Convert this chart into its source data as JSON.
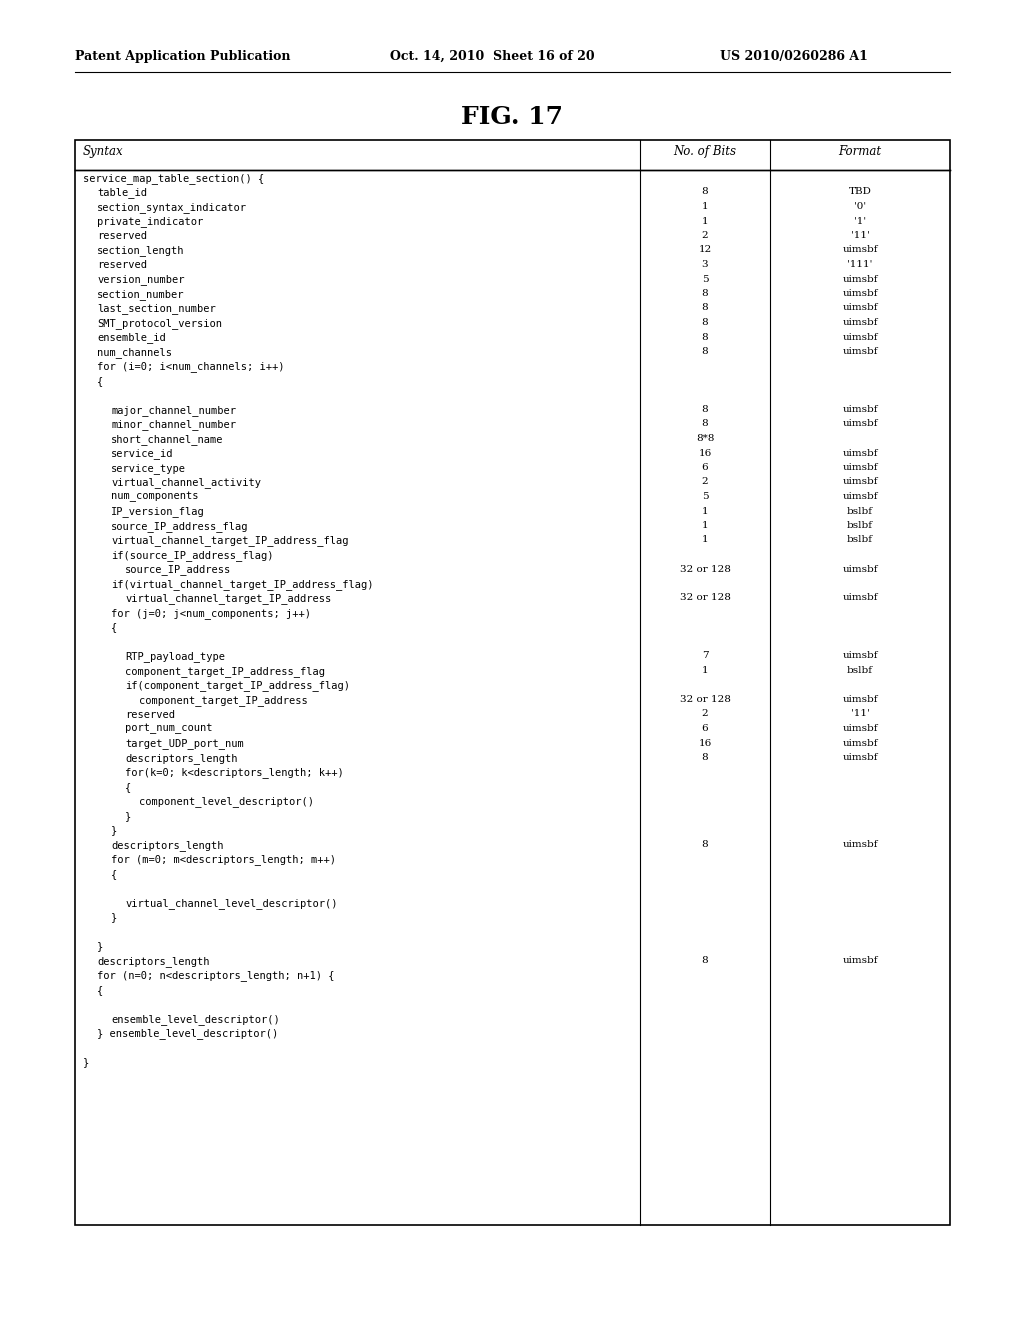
{
  "title": "FIG. 17",
  "header_line1": "Patent Application Publication",
  "header_line2": "Oct. 14, 2010  Sheet 16 of 20",
  "header_line3": "US 2010/0260286 A1",
  "col_headers": [
    "Syntax",
    "No. of Bits",
    "Format"
  ],
  "rows": [
    {
      "indent": 0,
      "syntax": "service_map_table_section() {",
      "bits": "",
      "fmt": ""
    },
    {
      "indent": 1,
      "syntax": "table_id",
      "bits": "8",
      "fmt": "TBD"
    },
    {
      "indent": 1,
      "syntax": "section_syntax_indicator",
      "bits": "1",
      "fmt": "'0'"
    },
    {
      "indent": 1,
      "syntax": "private_indicator",
      "bits": "1",
      "fmt": "'1'"
    },
    {
      "indent": 1,
      "syntax": "reserved",
      "bits": "2",
      "fmt": "'11'"
    },
    {
      "indent": 1,
      "syntax": "section_length",
      "bits": "12",
      "fmt": "uimsbf"
    },
    {
      "indent": 1,
      "syntax": "reserved",
      "bits": "3",
      "fmt": "'111'"
    },
    {
      "indent": 1,
      "syntax": "version_number",
      "bits": "5",
      "fmt": "uimsbf"
    },
    {
      "indent": 1,
      "syntax": "section_number",
      "bits": "8",
      "fmt": "uimsbf"
    },
    {
      "indent": 1,
      "syntax": "last_section_number",
      "bits": "8",
      "fmt": "uimsbf"
    },
    {
      "indent": 1,
      "syntax": "SMT_protocol_version",
      "bits": "8",
      "fmt": "uimsbf"
    },
    {
      "indent": 1,
      "syntax": "ensemble_id",
      "bits": "8",
      "fmt": "uimsbf"
    },
    {
      "indent": 1,
      "syntax": "num_channels",
      "bits": "8",
      "fmt": "uimsbf"
    },
    {
      "indent": 1,
      "syntax": "for (i=0; i<num_channels; i++)",
      "bits": "",
      "fmt": ""
    },
    {
      "indent": 1,
      "syntax": "{",
      "bits": "",
      "fmt": ""
    },
    {
      "indent": 0,
      "syntax": "",
      "bits": "",
      "fmt": ""
    },
    {
      "indent": 2,
      "syntax": "major_channel_number",
      "bits": "8",
      "fmt": "uimsbf"
    },
    {
      "indent": 2,
      "syntax": "minor_channel_number",
      "bits": "8",
      "fmt": "uimsbf"
    },
    {
      "indent": 2,
      "syntax": "short_channel_name",
      "bits": "8*8",
      "fmt": ""
    },
    {
      "indent": 2,
      "syntax": "service_id",
      "bits": "16",
      "fmt": "uimsbf"
    },
    {
      "indent": 2,
      "syntax": "service_type",
      "bits": "6",
      "fmt": "uimsbf"
    },
    {
      "indent": 2,
      "syntax": "virtual_channel_activity",
      "bits": "2",
      "fmt": "uimsbf"
    },
    {
      "indent": 2,
      "syntax": "num_components",
      "bits": "5",
      "fmt": "uimsbf"
    },
    {
      "indent": 2,
      "syntax": "IP_version_flag",
      "bits": "1",
      "fmt": "bslbf"
    },
    {
      "indent": 2,
      "syntax": "source_IP_address_flag",
      "bits": "1",
      "fmt": "bslbf"
    },
    {
      "indent": 2,
      "syntax": "virtual_channel_target_IP_address_flag",
      "bits": "1",
      "fmt": "bslbf"
    },
    {
      "indent": 2,
      "syntax": "if(source_IP_address_flag)",
      "bits": "",
      "fmt": ""
    },
    {
      "indent": 3,
      "syntax": "source_IP_address",
      "bits": "32 or 128",
      "fmt": "uimsbf"
    },
    {
      "indent": 2,
      "syntax": "if(virtual_channel_target_IP_address_flag)",
      "bits": "",
      "fmt": ""
    },
    {
      "indent": 3,
      "syntax": "virtual_channel_target_IP_address",
      "bits": "32 or 128",
      "fmt": "uimsbf"
    },
    {
      "indent": 2,
      "syntax": "for (j=0; j<num_components; j++)",
      "bits": "",
      "fmt": ""
    },
    {
      "indent": 2,
      "syntax": "{",
      "bits": "",
      "fmt": ""
    },
    {
      "indent": 0,
      "syntax": "",
      "bits": "",
      "fmt": ""
    },
    {
      "indent": 3,
      "syntax": "RTP_payload_type",
      "bits": "7",
      "fmt": "uimsbf"
    },
    {
      "indent": 3,
      "syntax": "component_target_IP_address_flag",
      "bits": "1",
      "fmt": "bslbf"
    },
    {
      "indent": 3,
      "syntax": "if(component_target_IP_address_flag)",
      "bits": "",
      "fmt": ""
    },
    {
      "indent": 4,
      "syntax": "component_target_IP_address",
      "bits": "32 or 128",
      "fmt": "uimsbf"
    },
    {
      "indent": 3,
      "syntax": "reserved",
      "bits": "2",
      "fmt": "'11'"
    },
    {
      "indent": 3,
      "syntax": "port_num_count",
      "bits": "6",
      "fmt": "uimsbf"
    },
    {
      "indent": 3,
      "syntax": "target_UDP_port_num",
      "bits": "16",
      "fmt": "uimsbf"
    },
    {
      "indent": 3,
      "syntax": "descriptors_length",
      "bits": "8",
      "fmt": "uimsbf"
    },
    {
      "indent": 3,
      "syntax": "for(k=0; k<descriptors_length; k++)",
      "bits": "",
      "fmt": ""
    },
    {
      "indent": 3,
      "syntax": "{",
      "bits": "",
      "fmt": ""
    },
    {
      "indent": 4,
      "syntax": "component_level_descriptor()",
      "bits": "",
      "fmt": ""
    },
    {
      "indent": 3,
      "syntax": "}",
      "bits": "",
      "fmt": ""
    },
    {
      "indent": 2,
      "syntax": "}",
      "bits": "",
      "fmt": ""
    },
    {
      "indent": 2,
      "syntax": "descriptors_length",
      "bits": "8",
      "fmt": "uimsbf"
    },
    {
      "indent": 2,
      "syntax": "for (m=0; m<descriptors_length; m++)",
      "bits": "",
      "fmt": ""
    },
    {
      "indent": 2,
      "syntax": "{",
      "bits": "",
      "fmt": ""
    },
    {
      "indent": 0,
      "syntax": "",
      "bits": "",
      "fmt": ""
    },
    {
      "indent": 3,
      "syntax": "virtual_channel_level_descriptor()",
      "bits": "",
      "fmt": ""
    },
    {
      "indent": 2,
      "syntax": "}",
      "bits": "",
      "fmt": ""
    },
    {
      "indent": 0,
      "syntax": "",
      "bits": "",
      "fmt": ""
    },
    {
      "indent": 1,
      "syntax": "}",
      "bits": "",
      "fmt": ""
    },
    {
      "indent": 1,
      "syntax": "descriptors_length",
      "bits": "8",
      "fmt": "uimsbf"
    },
    {
      "indent": 1,
      "syntax": "for (n=0; n<descriptors_length; n+1) {",
      "bits": "",
      "fmt": ""
    },
    {
      "indent": 1,
      "syntax": "{",
      "bits": "",
      "fmt": ""
    },
    {
      "indent": 0,
      "syntax": "",
      "bits": "",
      "fmt": ""
    },
    {
      "indent": 2,
      "syntax": "ensemble_level_descriptor()",
      "bits": "",
      "fmt": ""
    },
    {
      "indent": 1,
      "syntax": "} ensemble_level_descriptor()",
      "bits": "",
      "fmt": ""
    },
    {
      "indent": 0,
      "syntax": "",
      "bits": "",
      "fmt": ""
    },
    {
      "indent": 0,
      "syntax": "}",
      "bits": "",
      "fmt": ""
    }
  ],
  "table_bg": "#ffffff",
  "border_color": "#000000",
  "text_color": "#000000",
  "font_size": 7.5,
  "header_font_size": 8.5,
  "fig_title_size": 18,
  "page_header_size": 9
}
